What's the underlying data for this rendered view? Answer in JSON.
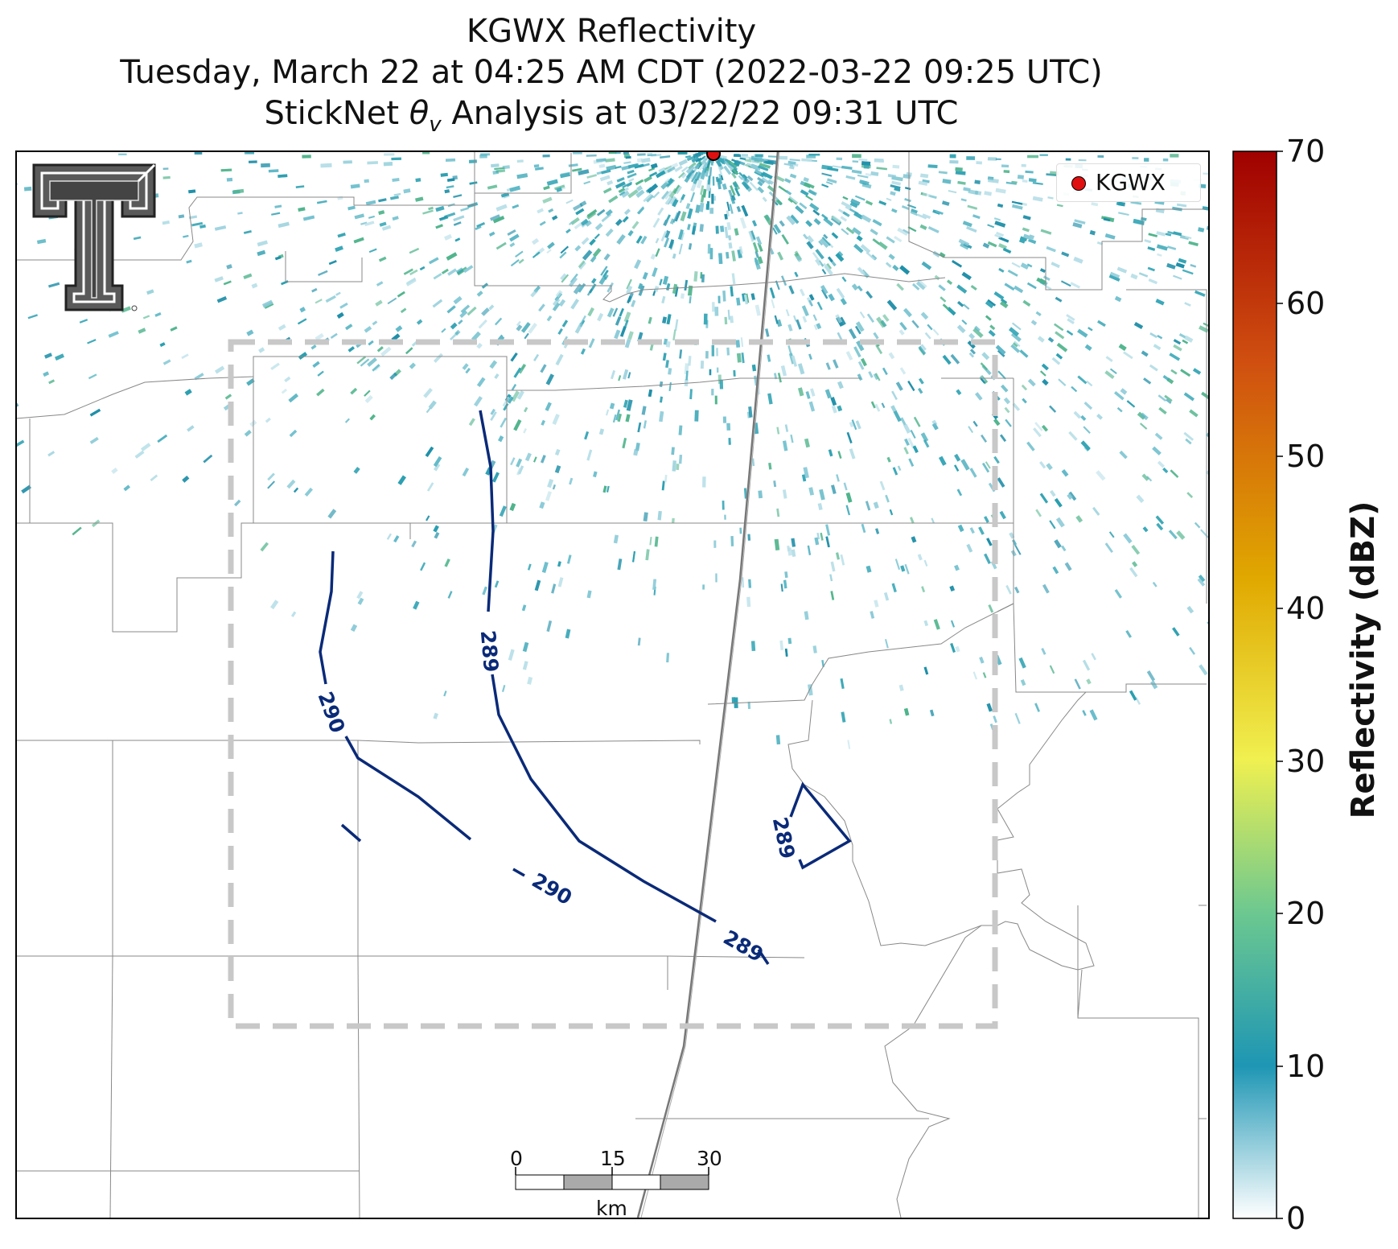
{
  "title": {
    "line1": "KGWX Reflectivity",
    "line2": "Tuesday, March 22 at 04:25 AM CDT (2022-03-22 09:25 UTC)",
    "line3_prefix": "StickNet ",
    "line3_theta": "θ",
    "line3_sub": "v",
    "line3_suffix": " Analysis at 03/22/22 09:31 UTC"
  },
  "legend": {
    "label": "KGWX",
    "marker_color": "#e01010"
  },
  "colorbar": {
    "label": "Reflectivity (dBZ)",
    "ticks": [
      "70",
      "60",
      "50",
      "40",
      "30",
      "20",
      "10",
      "0"
    ],
    "colors": [
      "#ffffff",
      "#1e96b4",
      "#6cc890",
      "#f0f050",
      "#e0a800",
      "#d05010",
      "#a00000"
    ]
  },
  "contours": [
    {
      "label": "289"
    },
    {
      "label": "290"
    },
    {
      "label": "290"
    },
    {
      "label": "289"
    },
    {
      "label": "289"
    }
  ],
  "scale_bar": {
    "ticks": [
      "0",
      "15",
      "30"
    ],
    "unit": "km"
  },
  "colors": {
    "contour": "#0a2a78",
    "box": "#c8c8c8",
    "county": "#888888",
    "highway": "#777777",
    "radar_echo": "#2a9fb0"
  }
}
